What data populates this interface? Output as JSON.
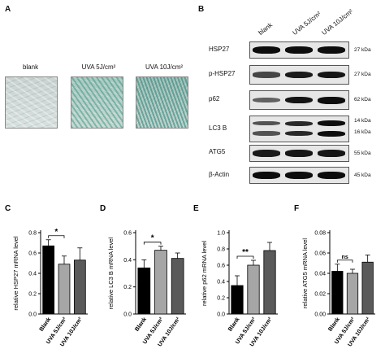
{
  "panel_a": {
    "letter": "A",
    "conditions": [
      "blank",
      "UVA 5J/cm²",
      "UVA 10J/cm²"
    ]
  },
  "panel_b": {
    "letter": "B",
    "columns": [
      "blank",
      "UVA 5J/cm²",
      "UVA 10J/cm²"
    ],
    "rows": [
      {
        "label": "HSP27",
        "kda": "27 kDa",
        "markers": [],
        "intensity": [
          1.0,
          1.0,
          1.0
        ]
      },
      {
        "label": "p-HSP27",
        "kda": "27 kDa",
        "markers": [],
        "intensity": [
          0.6,
          0.9,
          0.95
        ]
      },
      {
        "label": "p62",
        "kda": "62 kDa",
        "markers": [],
        "intensity": [
          0.4,
          0.95,
          1.0
        ]
      },
      {
        "label": "LC3 B",
        "kda": "",
        "markers": [
          "14 kDa",
          "16 kDa"
        ],
        "intensity": [
          0.5,
          0.8,
          1.0
        ]
      },
      {
        "label": "ATG5",
        "kda": "55 kDa",
        "markers": [],
        "intensity": [
          0.9,
          0.95,
          0.95
        ]
      },
      {
        "label": "β-Actin",
        "kda": "45 kDa",
        "markers": [],
        "intensity": [
          1.0,
          1.0,
          1.0
        ]
      }
    ]
  },
  "chart_data": [
    {
      "letter": "C",
      "type": "bar",
      "categories": [
        "Blank",
        "UVA 5J/cm²",
        "UVA 10J/cm²"
      ],
      "values": [
        0.67,
        0.49,
        0.53
      ],
      "errors": [
        0.06,
        0.08,
        0.12
      ],
      "ylabel": "relative HSP27 mRNA level",
      "ylim": [
        0,
        0.8
      ],
      "yticks": [
        "0.0",
        "0.2",
        "0.4",
        "0.6",
        "0.8"
      ],
      "colors": [
        "#000000",
        "#a6a6a6",
        "#5a5a5a"
      ],
      "significance": {
        "from": 0,
        "to": 1,
        "label": "*"
      }
    },
    {
      "letter": "D",
      "type": "bar",
      "categories": [
        "Blank",
        "UVA 5J/cm²",
        "UVA 10J/cm²"
      ],
      "values": [
        0.34,
        0.47,
        0.41
      ],
      "errors": [
        0.06,
        0.03,
        0.04
      ],
      "ylabel": "relative LC3 B mRNA level",
      "ylim": [
        0,
        0.6
      ],
      "yticks": [
        "0.0",
        "0.2",
        "0.4",
        "0.6"
      ],
      "colors": [
        "#000000",
        "#a6a6a6",
        "#5a5a5a"
      ],
      "significance": {
        "from": 0,
        "to": 1,
        "label": "*"
      }
    },
    {
      "letter": "E",
      "type": "bar",
      "categories": [
        "Blank",
        "UVA 5J/cm²",
        "UVA 10J/cm²"
      ],
      "values": [
        0.35,
        0.6,
        0.78
      ],
      "errors": [
        0.12,
        0.06,
        0.1
      ],
      "ylabel": "relative p62 mRNA level",
      "ylim": [
        0,
        1.0
      ],
      "yticks": [
        "0.0",
        "0.2",
        "0.4",
        "0.6",
        "0.8",
        "1.0"
      ],
      "colors": [
        "#000000",
        "#a6a6a6",
        "#5a5a5a"
      ],
      "significance": {
        "from": 0,
        "to": 1,
        "label": "**"
      }
    },
    {
      "letter": "F",
      "type": "bar",
      "categories": [
        "Blank",
        "UVA 5J/cm²",
        "UVA 10J/cm²"
      ],
      "values": [
        0.042,
        0.04,
        0.051
      ],
      "errors": [
        0.007,
        0.004,
        0.007
      ],
      "ylabel": "relative ATG5 mRNA level",
      "ylim": [
        0,
        0.08
      ],
      "yticks": [
        "0.00",
        "0.02",
        "0.04",
        "0.06",
        "0.08"
      ],
      "colors": [
        "#000000",
        "#a6a6a6",
        "#5a5a5a"
      ],
      "significance": {
        "from": 0,
        "to": 1,
        "label": "ns"
      }
    }
  ]
}
